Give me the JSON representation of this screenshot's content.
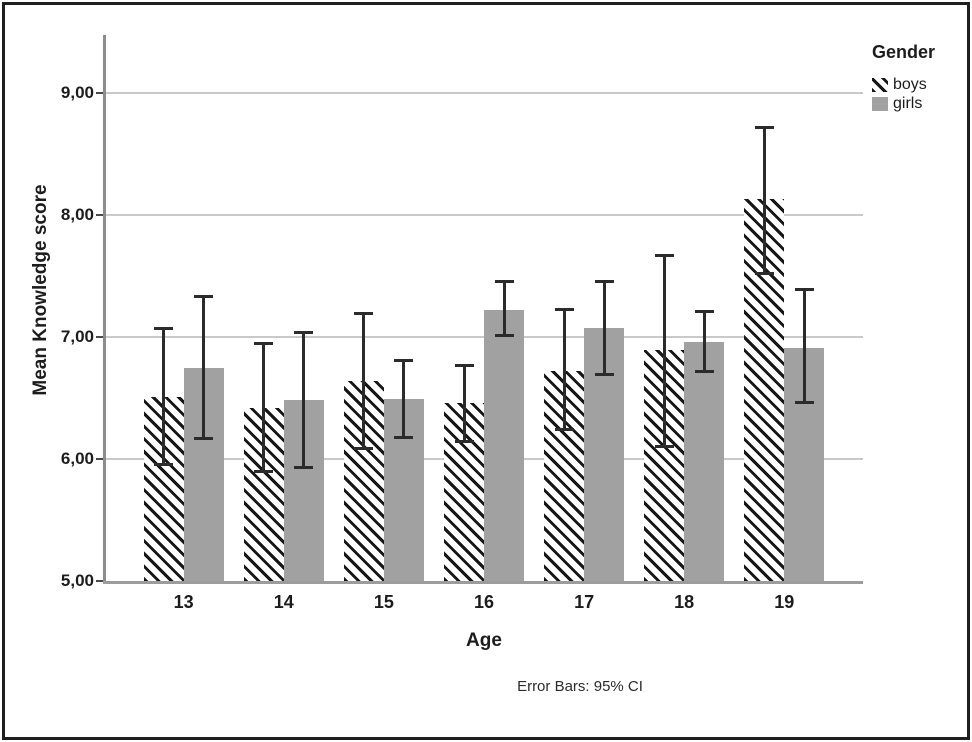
{
  "legend": {
    "title": "Gender",
    "items": [
      {
        "label": "boys",
        "swatch": "hatched"
      },
      {
        "label": "girls",
        "swatch": "solid"
      }
    ]
  },
  "footnote": "Error Bars: 95% CI",
  "colors": {
    "bar_gray": "#a1a1a1",
    "hatch_black": "#161616",
    "gridline": "#c9c9c9",
    "y_axis": "#8c8c8c",
    "x_axis": "#9c9c9c",
    "error_bar": "#2b2b2b",
    "frame": "#1f1f1f",
    "text": "#1c1c1c"
  },
  "chart_data": {
    "type": "bar",
    "title": "",
    "xlabel": "Age",
    "ylabel": "Mean Knowledge score",
    "categories": [
      "13",
      "14",
      "15",
      "16",
      "17",
      "18",
      "19"
    ],
    "y_tick_labels": [
      "5,00",
      "6,00",
      "7,00",
      "8,00",
      "9,00"
    ],
    "y_tick_values": [
      5,
      6,
      7,
      8,
      9
    ],
    "ylim": [
      5,
      9.4
    ],
    "grid": true,
    "legend_position": "top-right",
    "error_bars": "95% CI",
    "series": [
      {
        "name": "boys",
        "pattern": "hatched",
        "means": [
          6.51,
          6.42,
          6.64,
          6.46,
          6.72,
          6.89,
          8.13
        ],
        "ci_low": [
          5.95,
          5.89,
          6.08,
          6.14,
          6.24,
          6.1,
          7.52
        ],
        "ci_high": [
          7.07,
          6.95,
          7.2,
          6.77,
          7.23,
          7.67,
          8.72
        ]
      },
      {
        "name": "girls",
        "pattern": "solid",
        "means": [
          6.75,
          6.48,
          6.49,
          7.22,
          7.07,
          6.96,
          6.91
        ],
        "ci_low": [
          6.16,
          5.93,
          6.17,
          7.01,
          6.69,
          6.71,
          6.46
        ],
        "ci_high": [
          7.34,
          7.04,
          6.81,
          7.46,
          7.46,
          7.21,
          7.39
        ]
      }
    ]
  }
}
